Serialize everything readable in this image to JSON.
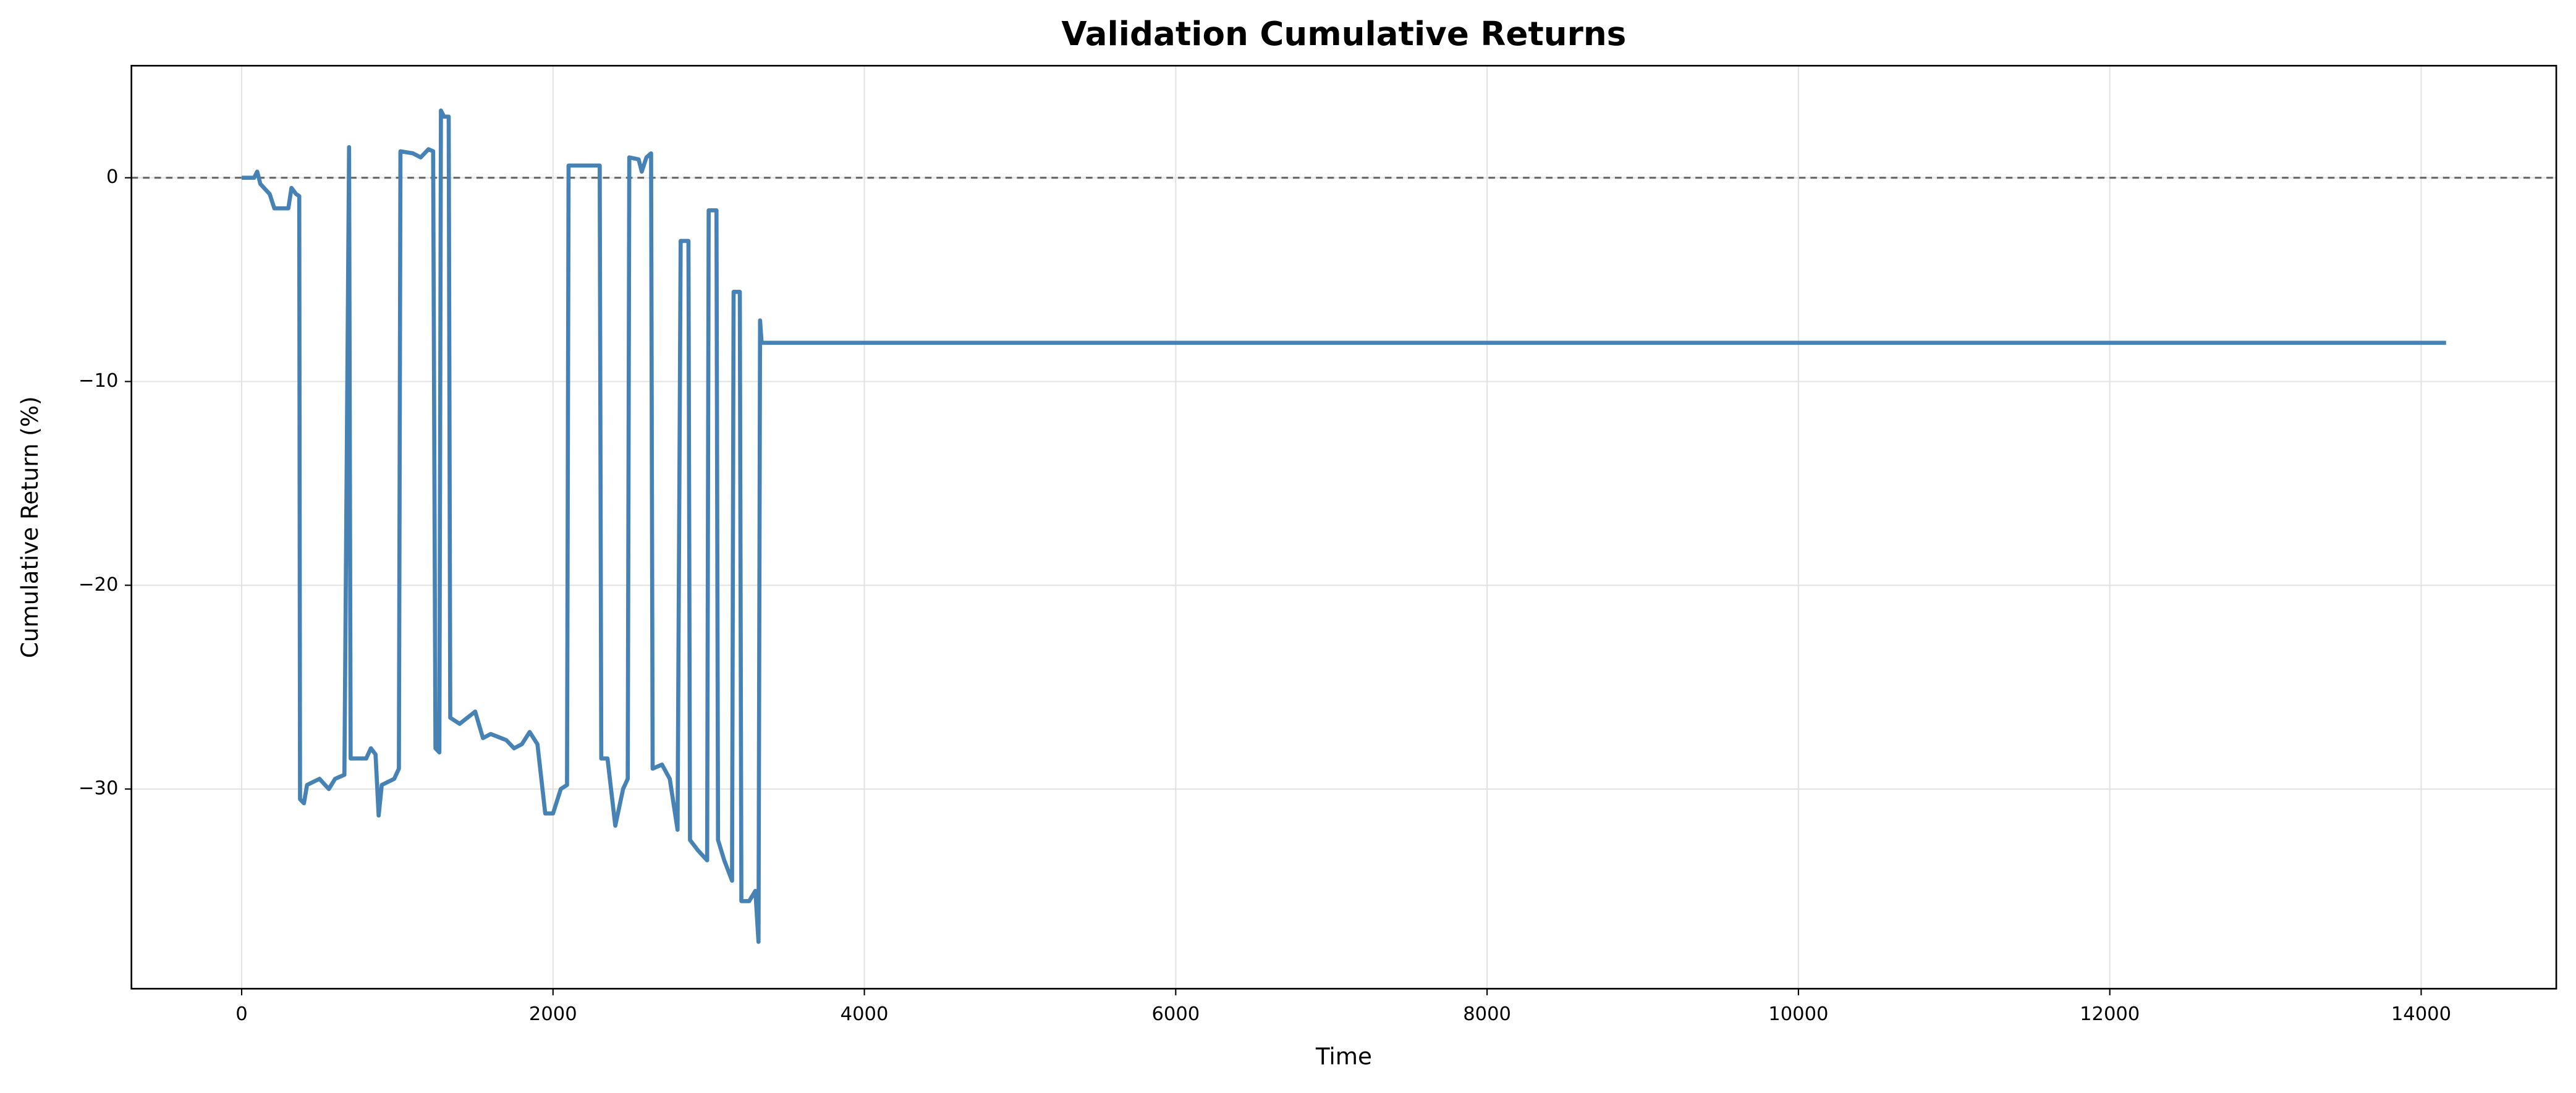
{
  "chart_data": {
    "type": "line",
    "title": "Validation Cumulative Returns",
    "xlabel": "Time",
    "ylabel": "Cumulative Return (%)",
    "color": "#4682b4",
    "grid": true,
    "reference_line": {
      "y": 0,
      "color": "#666666"
    },
    "xlim": [
      -708,
      14868
    ],
    "ylim": [
      -39.8,
      5.5
    ],
    "xticks": [
      0,
      2000,
      4000,
      6000,
      8000,
      10000,
      12000,
      14000
    ],
    "yticks": [
      {
        "value": -30,
        "label": "−30"
      },
      {
        "value": -20,
        "label": "−20"
      },
      {
        "value": -10,
        "label": "−10"
      },
      0
    ],
    "x": [
      0,
      80,
      100,
      120,
      180,
      210,
      300,
      320,
      350,
      370,
      375,
      400,
      420,
      500,
      560,
      600,
      660,
      690,
      700,
      800,
      830,
      860,
      880,
      900,
      980,
      1010,
      1020,
      1100,
      1150,
      1200,
      1230,
      1245,
      1270,
      1280,
      1300,
      1330,
      1340,
      1400,
      1450,
      1500,
      1550,
      1600,
      1700,
      1750,
      1800,
      1850,
      1900,
      1950,
      2000,
      2050,
      2090,
      2100,
      2300,
      2310,
      2350,
      2400,
      2450,
      2480,
      2490,
      2550,
      2570,
      2600,
      2630,
      2640,
      2700,
      2750,
      2800,
      2820,
      2870,
      2880,
      2930,
      2990,
      3000,
      3050,
      3060,
      3100,
      3150,
      3160,
      3200,
      3210,
      3260,
      3300,
      3320,
      3330,
      3340,
      14160
    ],
    "values": [
      0,
      0,
      0.3,
      -0.3,
      -0.8,
      -1.5,
      -1.5,
      -0.5,
      -0.8,
      -0.9,
      -30.5,
      -30.7,
      -29.8,
      -29.5,
      -30,
      -29.5,
      -29.3,
      1.5,
      -28.5,
      -28.5,
      -28.0,
      -28.3,
      -31.3,
      -29.8,
      -29.5,
      -29.0,
      1.3,
      1.2,
      1.0,
      1.4,
      1.3,
      -28.0,
      -28.2,
      3.3,
      3.0,
      3.0,
      -26.5,
      -26.8,
      -26.5,
      -26.2,
      -27.5,
      -27.3,
      -27.6,
      -28.0,
      -27.8,
      -27.2,
      -27.8,
      -31.2,
      -31.2,
      -30.0,
      -29.8,
      0.6,
      0.6,
      -28.5,
      -28.5,
      -31.8,
      -30.0,
      -29.5,
      1.0,
      0.9,
      0.3,
      1.0,
      1.2,
      -29.0,
      -28.8,
      -29.5,
      -32.0,
      -3.1,
      -3.1,
      -32.5,
      -33.0,
      -33.5,
      -1.6,
      -1.6,
      -32.5,
      -33.5,
      -34.5,
      -5.6,
      -5.6,
      -35.5,
      -35.5,
      -35.0,
      -37.5,
      -7.0,
      -8.1,
      -8.1
    ]
  }
}
